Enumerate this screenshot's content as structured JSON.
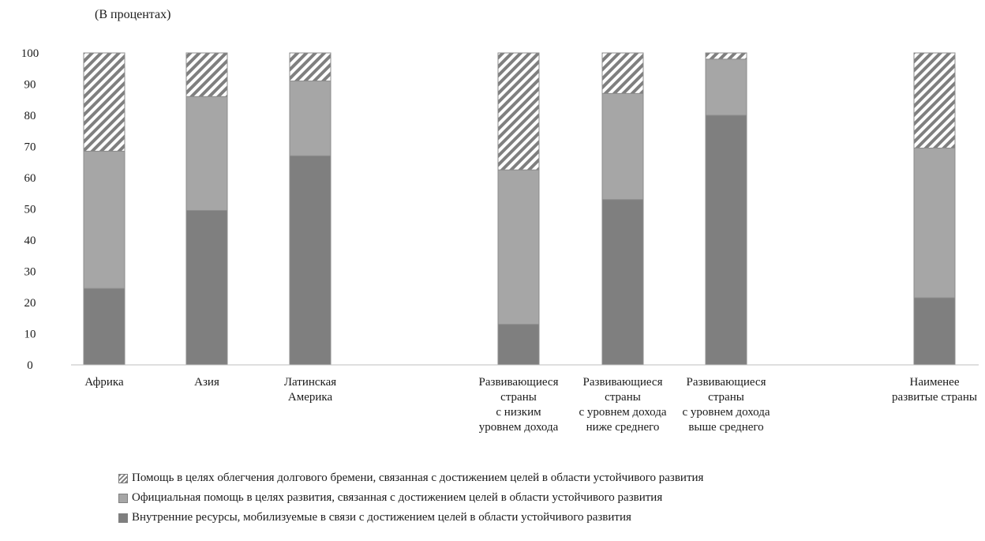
{
  "unit_note": "(В процентах)",
  "colors": {
    "domestic": "#7f7f7f",
    "oda": "#a6a6a6",
    "debt_hatch": "#808080",
    "axis": "#bfbfbf"
  },
  "chart_data": {
    "type": "bar",
    "stacked": true,
    "ylim": [
      0,
      100
    ],
    "yticks": [
      "0",
      "10",
      "20",
      "30",
      "40",
      "50",
      "60",
      "70",
      "80",
      "90",
      "100"
    ],
    "categories": [
      [
        "Африка"
      ],
      [
        "Азия"
      ],
      [
        "Латинская",
        "Америка"
      ],
      [
        "Развивающиеся",
        "страны",
        "с низким",
        "уровнем дохода"
      ],
      [
        "Развивающиеся",
        "страны",
        "с уровнем дохода",
        "ниже среднего"
      ],
      [
        "Развивающиеся",
        "страны",
        "с уровнем дохода",
        "выше среднего"
      ],
      [
        "Наименее",
        "развитые страны"
      ]
    ],
    "series": [
      {
        "name": "Внутренние ресурсы, мобилизуемые в связи с достижением целей в области устойчивого развития",
        "values": [
          24.5,
          49.5,
          67,
          13,
          53,
          80,
          21.5
        ]
      },
      {
        "name": "Официальная помощь в целях развития, связанная с достижением целей в области устойчивого развития",
        "values": [
          44,
          36.5,
          24,
          49.5,
          34,
          18,
          48
        ]
      },
      {
        "name": "Помощь в целях облегчения долгового бремени, связанная с достижением целей в области устойчивого развития",
        "values": [
          31.5,
          14,
          9,
          37.5,
          13,
          2,
          30.5
        ]
      }
    ],
    "legend": "bottom",
    "grid": false
  }
}
